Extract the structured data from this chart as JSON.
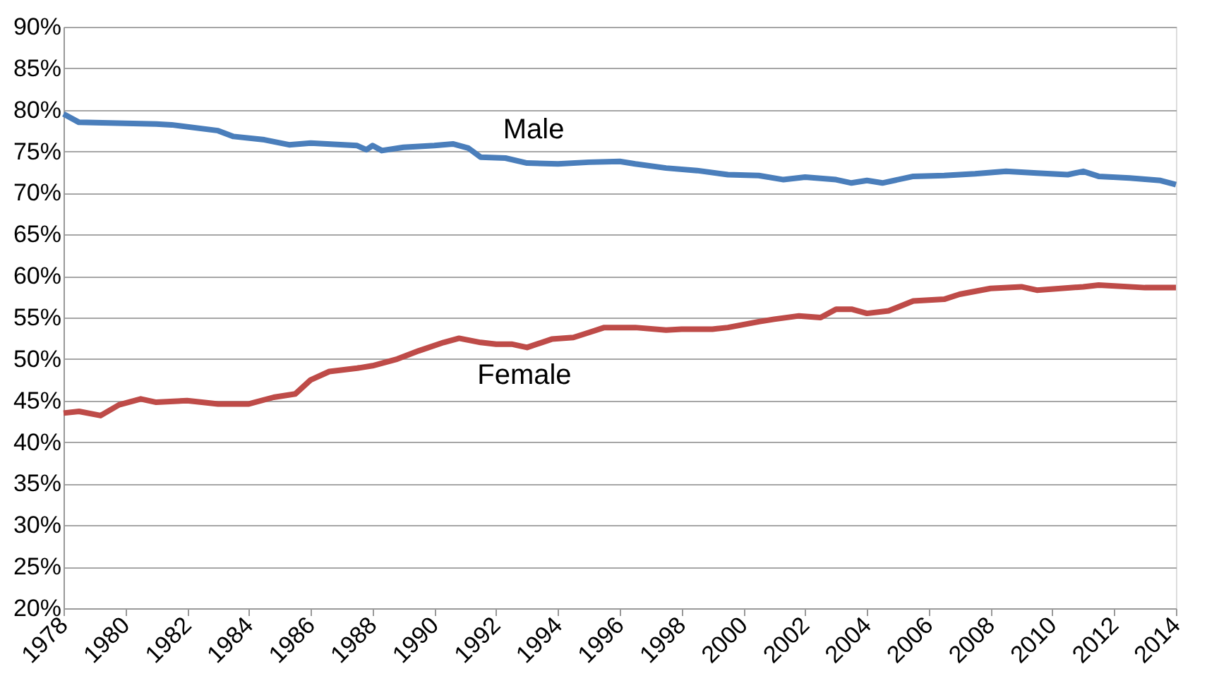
{
  "chart_data": {
    "type": "line",
    "xlim": [
      1978,
      2014
    ],
    "xticks": [
      1978,
      1980,
      1982,
      1984,
      1986,
      1988,
      1990,
      1992,
      1994,
      1996,
      1998,
      2000,
      2002,
      2004,
      2006,
      2008,
      2010,
      2012,
      2014
    ],
    "ylim": [
      20,
      90
    ],
    "yticks": [
      {
        "value": 20,
        "label": "20%"
      },
      {
        "value": 25,
        "label": "25%"
      },
      {
        "value": 30,
        "label": "30%"
      },
      {
        "value": 35,
        "label": "35%"
      },
      {
        "value": 40,
        "label": "40%"
      },
      {
        "value": 45,
        "label": "45%"
      },
      {
        "value": 50,
        "label": "50%"
      },
      {
        "value": 55,
        "label": "55%"
      },
      {
        "value": 60,
        "label": "60%"
      },
      {
        "value": 65,
        "label": "65%"
      },
      {
        "value": 70,
        "label": "70%"
      },
      {
        "value": 75,
        "label": "75%"
      },
      {
        "value": 80,
        "label": "80%"
      },
      {
        "value": 85,
        "label": "85%"
      },
      {
        "value": 90,
        "label": "90%"
      }
    ],
    "grid": "y",
    "marker": "none",
    "line_style": "solid",
    "series": [
      {
        "name": "Male",
        "color": "#4a7ebb",
        "x": [
          1978,
          1978.5,
          1981,
          1981.5,
          1983,
          1983.5,
          1984.5,
          1985.3,
          1986,
          1987.5,
          1987.8,
          1988,
          1988.3,
          1989,
          1990,
          1990.6,
          1991.1,
          1991.5,
          1992.3,
          1993,
          1994,
          1995,
          1996,
          1996.5,
          1997.5,
          1998.5,
          1999.5,
          2000.5,
          2001.3,
          2002,
          2003,
          2003.5,
          2004,
          2004.5,
          2005.5,
          2006.5,
          2007.5,
          2008.5,
          2009.5,
          2010.5,
          2011,
          2011.5,
          2012.5,
          2013.5,
          2014
        ],
        "values": [
          79.5,
          78.5,
          78.3,
          78.2,
          77.5,
          76.8,
          76.4,
          75.8,
          76,
          75.7,
          75.2,
          75.7,
          75.1,
          75.5,
          75.7,
          75.9,
          75.4,
          74.3,
          74.2,
          73.6,
          73.5,
          73.7,
          73.8,
          73.5,
          73,
          72.7,
          72.2,
          72.1,
          71.6,
          71.9,
          71.6,
          71.2,
          71.5,
          71.2,
          72,
          72.1,
          72.3,
          72.6,
          72.4,
          72.2,
          72.6,
          72,
          71.8,
          71.5,
          71
        ]
      },
      {
        "name": "Female",
        "color": "#be4b48",
        "x": [
          1978,
          1978.5,
          1979.2,
          1979.8,
          1980.5,
          1981,
          1982,
          1983,
          1984,
          1984.8,
          1985.5,
          1986,
          1986.6,
          1987.5,
          1988,
          1988.8,
          1989.5,
          1990.3,
          1990.8,
          1991.5,
          1992,
          1992.5,
          1993,
          1993.8,
          1994.5,
          1995,
          1995.5,
          1996.5,
          1997.5,
          1998,
          1999,
          1999.5,
          2000.5,
          2001,
          2001.8,
          2002.5,
          2003,
          2003.5,
          2004,
          2004.7,
          2005.5,
          2006.5,
          2007,
          2008,
          2009,
          2009.5,
          2011,
          2011.5,
          2013,
          2014
        ],
        "values": [
          43.5,
          43.7,
          43.2,
          44.5,
          45.2,
          44.8,
          45,
          44.6,
          44.6,
          45.4,
          45.8,
          47.5,
          48.5,
          48.9,
          49.2,
          50,
          51,
          52,
          52.5,
          52,
          51.8,
          51.8,
          51.4,
          52.4,
          52.6,
          53.2,
          53.8,
          53.8,
          53.5,
          53.6,
          53.6,
          53.8,
          54.5,
          54.8,
          55.2,
          55,
          56,
          56,
          55.5,
          55.8,
          57,
          57.2,
          57.8,
          58.5,
          58.7,
          58.3,
          58.7,
          58.9,
          58.6,
          58.6
        ]
      }
    ]
  }
}
